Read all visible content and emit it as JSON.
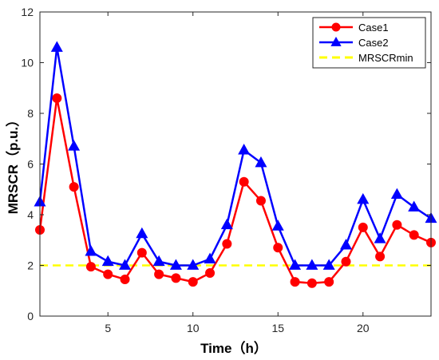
{
  "chart_data": {
    "type": "line",
    "xlabel": "Time（h）",
    "ylabel": "MRSCR（p.u.）",
    "xlim": [
      1,
      24
    ],
    "ylim": [
      0,
      12
    ],
    "xticks": [
      5,
      10,
      15,
      20
    ],
    "yticks": [
      0,
      2,
      4,
      6,
      8,
      10,
      12
    ],
    "grid": false,
    "legend_position": "top-right",
    "x": [
      1,
      2,
      3,
      4,
      5,
      6,
      7,
      8,
      9,
      10,
      11,
      12,
      13,
      14,
      15,
      16,
      17,
      18,
      19,
      20,
      21,
      22,
      23,
      24
    ],
    "series": [
      {
        "name": "Case1",
        "color": "#ff0000",
        "marker": "circle",
        "values": [
          3.4,
          8.6,
          5.1,
          1.95,
          1.65,
          1.45,
          2.5,
          1.65,
          1.5,
          1.35,
          1.7,
          2.85,
          5.3,
          4.55,
          2.7,
          1.35,
          1.3,
          1.35,
          2.15,
          3.5,
          2.35,
          3.6,
          3.2,
          2.9
        ]
      },
      {
        "name": "Case2",
        "color": "#0000ff",
        "marker": "triangle",
        "values": [
          4.5,
          10.6,
          6.7,
          2.55,
          2.15,
          2.0,
          3.25,
          2.15,
          2.0,
          2.0,
          2.25,
          3.6,
          6.55,
          6.05,
          3.55,
          2.0,
          2.0,
          2.0,
          2.8,
          4.6,
          3.05,
          4.8,
          4.3,
          3.85
        ]
      },
      {
        "name": "MRSCRmin",
        "color": "#ffff00",
        "dashed": true,
        "values": [
          2,
          2,
          2,
          2,
          2,
          2,
          2,
          2,
          2,
          2,
          2,
          2,
          2,
          2,
          2,
          2,
          2,
          2,
          2,
          2,
          2,
          2,
          2,
          2
        ]
      }
    ]
  }
}
